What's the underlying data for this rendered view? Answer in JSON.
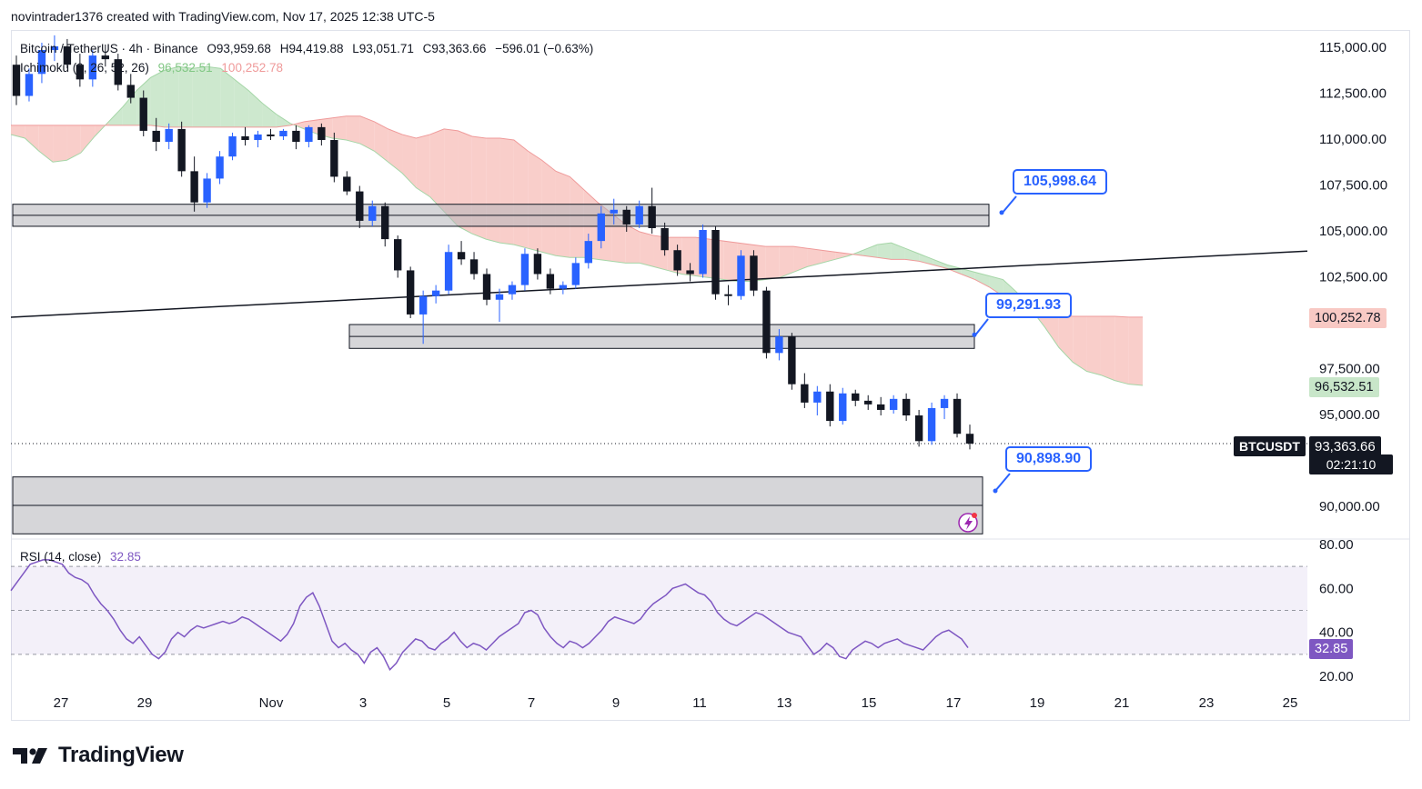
{
  "header": {
    "credit": "novintrader1376 created with TradingView.com, Nov 17, 2025 12:38 UTC-5"
  },
  "legend": {
    "symbol": "Bitcoin / TetherUS · 4h · Binance",
    "open": "O93,959.68",
    "high": "H94,419.88",
    "low": "L93,051.71",
    "close": "C93,363.66",
    "change": "−596.01 (−0.63%)",
    "ichimoku_label": "Ichimoku (9, 26, 52, 26)",
    "ichimoku_a": "96,532.51",
    "ichimoku_b": "100,252.78",
    "rsi_label": "RSI (14, close)",
    "rsi_value": "32.85"
  },
  "price_axis": {
    "labels": [
      "115,000.00",
      "112,500.00",
      "110,000.00",
      "107,500.00",
      "105,000.00",
      "102,500.00",
      "97,500.00",
      "95,000.00",
      "90,000.00"
    ],
    "tag_span_b": "100,252.78",
    "tag_span_a": "96,532.51",
    "tag_symbol": "BTCUSDT",
    "tag_last": "93,363.66",
    "tag_countdown": "02:21:10"
  },
  "rsi_axis": {
    "labels": [
      "80.00",
      "60.00",
      "40.00",
      "20.00"
    ],
    "tag": "32.85"
  },
  "time_axis": {
    "labels": [
      "27",
      "29",
      "Nov",
      "3",
      "5",
      "7",
      "9",
      "11",
      "13",
      "15",
      "17",
      "19",
      "21",
      "23",
      "25"
    ]
  },
  "callouts": {
    "c1": "105,998.64",
    "c2": "99,291.93",
    "c3": "90,898.90"
  },
  "brand": {
    "name": "TradingView"
  },
  "colors": {
    "up": "#2962ff",
    "down": "#131722",
    "cloud_bull": "#c8e6c9",
    "cloud_bear": "#f8c9c4",
    "rsi": "#7e57c2",
    "callout": "#2962ff"
  },
  "chart_data": {
    "type": "candlestick",
    "title": "Bitcoin / TetherUS · 4h · Binance",
    "timeframe": "4h",
    "y_range": [
      88500,
      116500
    ],
    "zones": [
      {
        "name": "resistance-zone",
        "from": 105200,
        "to": 106400,
        "mid": 105800
      },
      {
        "name": "support-zone-1",
        "from": 98550,
        "to": 99850,
        "mid": 99200
      },
      {
        "name": "support-zone-2",
        "from": 88450,
        "to": 91550,
        "mid": 90000
      }
    ],
    "trendline": {
      "start_price": 100250,
      "end_price": 103850
    },
    "last_price": 93363.66,
    "rsi": {
      "range": [
        15,
        85
      ],
      "bands": [
        30,
        50,
        70
      ],
      "last": 32.85
    },
    "candles_approx": [
      [
        114000,
        114500,
        111800,
        112300
      ],
      [
        112300,
        113800,
        112000,
        113500
      ],
      [
        113500,
        115200,
        113000,
        114800
      ],
      [
        114800,
        115600,
        114200,
        115000
      ],
      [
        115000,
        115400,
        113800,
        114000
      ],
      [
        114000,
        114600,
        112800,
        113200
      ],
      [
        113200,
        114800,
        112800,
        114500
      ],
      [
        114500,
        115100,
        113900,
        114300
      ],
      [
        114300,
        114600,
        112600,
        112900
      ],
      [
        112900,
        113500,
        111900,
        112200
      ],
      [
        112200,
        112600,
        110100,
        110400
      ],
      [
        110400,
        111100,
        109300,
        109800
      ],
      [
        109800,
        110800,
        109400,
        110500
      ],
      [
        110500,
        110900,
        107900,
        108200
      ],
      [
        108200,
        109000,
        106000,
        106500
      ],
      [
        106500,
        108100,
        106200,
        107800
      ],
      [
        107800,
        109300,
        107500,
        109000
      ],
      [
        109000,
        110300,
        108800,
        110100
      ],
      [
        110100,
        110600,
        109600,
        109900
      ],
      [
        109900,
        110400,
        109500,
        110200
      ],
      [
        110200,
        110500,
        109900,
        110100
      ],
      [
        110100,
        110500,
        109900,
        110400
      ],
      [
        110400,
        110700,
        109400,
        109800
      ],
      [
        109800,
        110700,
        109500,
        110600
      ],
      [
        110600,
        110800,
        109600,
        109900
      ],
      [
        109900,
        110300,
        107600,
        107900
      ],
      [
        107900,
        108200,
        106900,
        107100
      ],
      [
        107100,
        107400,
        105100,
        105500
      ],
      [
        105500,
        106600,
        105200,
        106300
      ],
      [
        106300,
        106500,
        104100,
        104500
      ],
      [
        104500,
        104700,
        102400,
        102800
      ],
      [
        102800,
        103000,
        100200,
        100400
      ],
      [
        100400,
        101700,
        98800,
        101400
      ],
      [
        101400,
        102000,
        101000,
        101700
      ],
      [
        101700,
        104200,
        101500,
        103800
      ],
      [
        103800,
        104400,
        103100,
        103400
      ],
      [
        103400,
        103800,
        102300,
        102600
      ],
      [
        102600,
        102900,
        100900,
        101200
      ],
      [
        101200,
        101800,
        100000,
        101500
      ],
      [
        101500,
        102200,
        101200,
        102000
      ],
      [
        102000,
        104000,
        101700,
        103700
      ],
      [
        103700,
        104000,
        102300,
        102600
      ],
      [
        102600,
        102900,
        101500,
        101800
      ],
      [
        101800,
        102200,
        101500,
        102000
      ],
      [
        102000,
        103500,
        101800,
        103200
      ],
      [
        103200,
        104800,
        102900,
        104400
      ],
      [
        104400,
        106300,
        104000,
        105900
      ],
      [
        105900,
        106700,
        105300,
        106100
      ],
      [
        106100,
        106300,
        104900,
        105300
      ],
      [
        105300,
        106600,
        105100,
        106300
      ],
      [
        106300,
        107300,
        104800,
        105100
      ],
      [
        105100,
        105400,
        103600,
        103900
      ],
      [
        103900,
        104200,
        102500,
        102800
      ],
      [
        102800,
        103200,
        102200,
        102600
      ],
      [
        102600,
        105300,
        102400,
        105000
      ],
      [
        105000,
        105200,
        101200,
        101500
      ],
      [
        101500,
        102000,
        100900,
        101400
      ],
      [
        101400,
        103900,
        101200,
        103600
      ],
      [
        103600,
        103900,
        101400,
        101700
      ],
      [
        101700,
        101900,
        98000,
        98300
      ],
      [
        98300,
        99600,
        97900,
        99200
      ],
      [
        99200,
        99400,
        96300,
        96600
      ],
      [
        96600,
        97200,
        95300,
        95600
      ],
      [
        95600,
        96500,
        94900,
        96200
      ],
      [
        96200,
        96600,
        94300,
        94600
      ],
      [
        94600,
        96400,
        94400,
        96100
      ],
      [
        96100,
        96300,
        95400,
        95700
      ],
      [
        95700,
        96000,
        95200,
        95500
      ],
      [
        95500,
        95900,
        94900,
        95200
      ],
      [
        95200,
        96000,
        95000,
        95800
      ],
      [
        95800,
        96100,
        94600,
        94900
      ],
      [
        94900,
        95200,
        93200,
        93500
      ],
      [
        93500,
        95600,
        93300,
        95300
      ],
      [
        95300,
        96000,
        94700,
        95800
      ],
      [
        95800,
        96100,
        93700,
        93900
      ],
      [
        93900,
        94400,
        93050,
        93364
      ]
    ]
  }
}
